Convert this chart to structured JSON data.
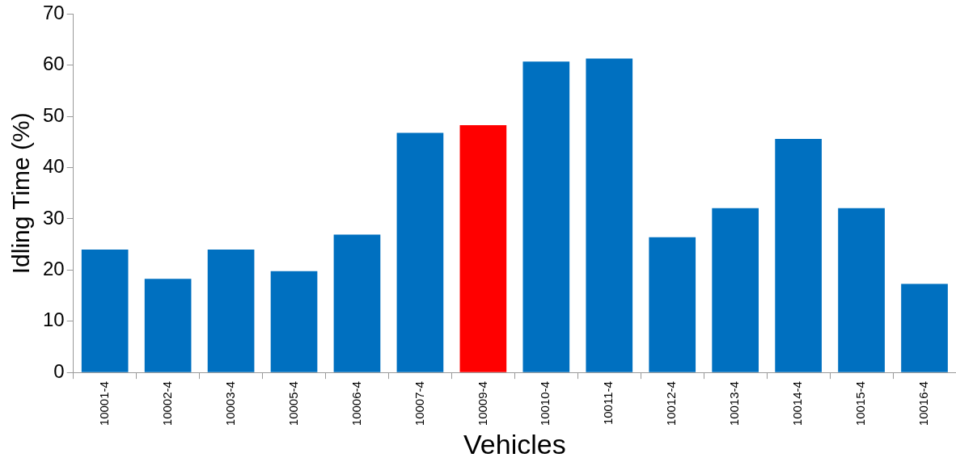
{
  "chart_data": {
    "type": "bar",
    "xlabel": "Vehicles",
    "ylabel": "Idling Time (%)",
    "categories": [
      "10001-4",
      "10002-4",
      "10003-4",
      "10005-4",
      "10006-4",
      "10007-4",
      "10009-4",
      "10010-4",
      "10011-4",
      "10012-4",
      "10013-4",
      "10014-4",
      "10015-4",
      "10016-4"
    ],
    "values": [
      24,
      18.3,
      24,
      19.8,
      26.9,
      46.8,
      48.3,
      60.7,
      61.3,
      26.4,
      32.1,
      45.6,
      32.1,
      17.3
    ],
    "colors": [
      "#0070c0",
      "#0070c0",
      "#0070c0",
      "#0070c0",
      "#0070c0",
      "#0070c0",
      "#ff0000",
      "#0070c0",
      "#0070c0",
      "#0070c0",
      "#0070c0",
      "#0070c0",
      "#0070c0",
      "#0070c0"
    ],
    "ylim": [
      0,
      70
    ],
    "yticks": [
      0,
      10,
      20,
      30,
      40,
      50,
      60,
      70
    ],
    "grid": false,
    "legend": false
  }
}
